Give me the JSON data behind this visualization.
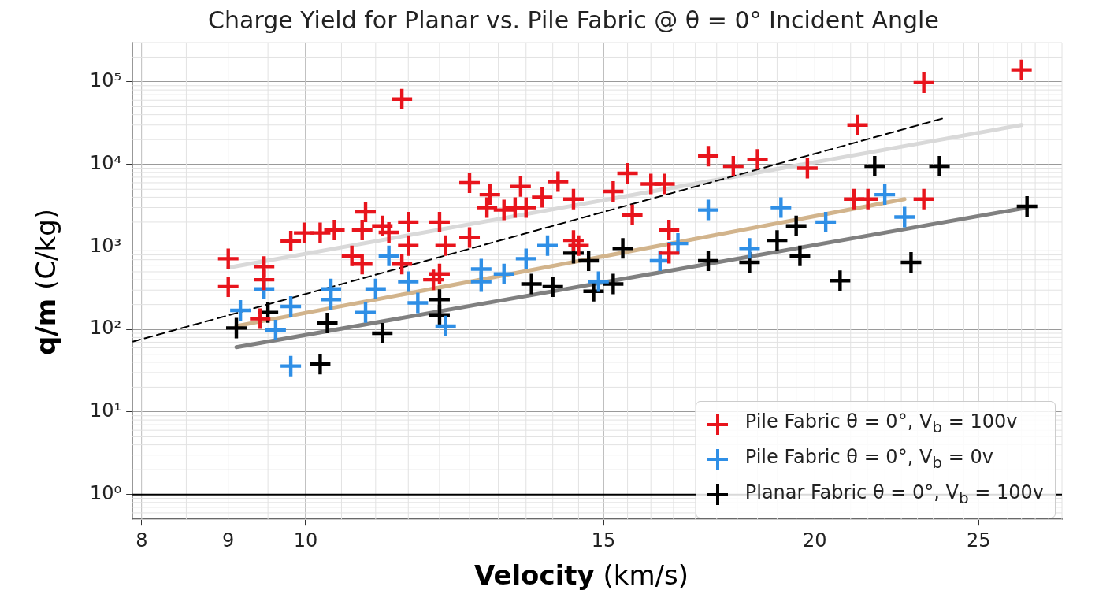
{
  "chart_data": {
    "type": "scatter",
    "title": "Charge Yield for Planar vs. Pile Fabric @ θ = 0° Incident Angle",
    "xlabel": "Velocity (km/s)",
    "ylabel": "q/m (C/kg)",
    "log": "xy",
    "xlim": [
      7.9,
      28
    ],
    "xticks": [
      8,
      9,
      10,
      15,
      20,
      25
    ],
    "ylim": [
      0.5,
      300000
    ],
    "yticks": [
      {
        "value": 1,
        "label": "10⁰"
      },
      {
        "value": 10,
        "label": "10¹"
      },
      {
        "value": 100,
        "label": "10²"
      },
      {
        "value": 1000,
        "label": "10³"
      },
      {
        "value": 10000,
        "label": "10⁴"
      },
      {
        "value": 100000,
        "label": "10⁵"
      }
    ],
    "grid": true,
    "legend": "bottom right",
    "marker": "cross",
    "ref_lines": [
      {
        "axis": "y",
        "value": 1,
        "color": "#000000"
      }
    ],
    "series": [
      {
        "name": "Pile Fabric θ = 0°, V$_{b}$ = 100v",
        "color": "#e8141c",
        "x": [
          9.0,
          9.0,
          9.45,
          9.45,
          9.4,
          9.8,
          9.98,
          10.2,
          10.4,
          10.65,
          10.8,
          10.85,
          10.8,
          11.1,
          11.2,
          11.5,
          11.5,
          11.4,
          11.4,
          11.9,
          12.0,
          12.1,
          12.5,
          12.0,
          12.5,
          12.85,
          12.8,
          13.1,
          13.4,
          13.3,
          13.5,
          13.8,
          14.1,
          14.4,
          14.4,
          14.5,
          15.2,
          15.5,
          15.6,
          16.0,
          16.3,
          16.4,
          16.4,
          17.3,
          17.9,
          18.5,
          19.8,
          21.2,
          21.1,
          21.5,
          23.2,
          23.2,
          26.5
        ],
        "values": [
          720,
          330,
          400,
          580,
          135,
          1180,
          1480,
          1480,
          1600,
          780,
          620,
          2650,
          1600,
          1800,
          1500,
          2000,
          1040,
          62000,
          620,
          400,
          2000,
          1040,
          1300,
          470,
          6000,
          4300,
          3000,
          2800,
          5400,
          3000,
          3000,
          4000,
          6200,
          3800,
          1200,
          1040,
          4700,
          7800,
          2450,
          5800,
          5800,
          1600,
          840,
          12600,
          9500,
          11500,
          9000,
          30000,
          3800,
          3800,
          98000,
          3800,
          140000
        ]
      },
      {
        "name": "Pile Fabric θ = 0°, V$_{b}$ = 0v",
        "color": "#2f8fe6",
        "x": [
          9.15,
          9.45,
          9.6,
          9.8,
          9.8,
          10.35,
          10.35,
          11.0,
          10.85,
          11.2,
          11.5,
          11.65,
          12.1,
          12.7,
          13.1,
          12.7,
          13.5,
          13.9,
          14.9,
          16.2,
          16.6,
          17.3,
          18.3,
          19.1,
          20.3,
          22.0,
          22.6
        ],
        "values": [
          170,
          310,
          98,
          190,
          36,
          310,
          230,
          310,
          160,
          780,
          380,
          210,
          110,
          540,
          470,
          380,
          720,
          1040,
          380,
          680,
          1100,
          2800,
          960,
          3000,
          2000,
          4300,
          2300
        ]
      },
      {
        "name": "Planar Fabric θ = 0°, V$_{b}$ = 100v",
        "color": "#000000",
        "x": [
          9.1,
          9.5,
          10.3,
          10.2,
          11.1,
          12.0,
          12.0,
          14.4,
          14.7,
          13.6,
          14.0,
          14.8,
          15.2,
          15.4,
          17.3,
          18.3,
          19.0,
          19.5,
          19.6,
          20.7,
          21.7,
          22.8,
          23.7,
          26.7
        ],
        "values": [
          104,
          160,
          120,
          38,
          90,
          230,
          150,
          840,
          680,
          355,
          330,
          290,
          355,
          960,
          680,
          650,
          1200,
          1800,
          780,
          390,
          9500,
          650,
          9500,
          3100
        ]
      },
      {
        "type": "line",
        "marker": "none",
        "color": "#000000",
        "line_style": "dashed",
        "x": [
          7.9,
          23.8
        ],
        "values": [
          71,
          36000
        ]
      },
      {
        "type": "line",
        "marker": "none",
        "color": "#d9d9d9",
        "line_style": "solid",
        "x": [
          9.0,
          26.5
        ],
        "values": [
          560,
          30000
        ]
      },
      {
        "type": "line",
        "marker": "none",
        "color": "#d2b48c",
        "line_style": "solid",
        "x": [
          9.1,
          22.6
        ],
        "values": [
          110,
          3800
        ]
      },
      {
        "type": "line",
        "marker": "none",
        "color": "#808080",
        "line_style": "solid",
        "x": [
          9.1,
          26.7
        ],
        "values": [
          61,
          3000
        ]
      }
    ]
  }
}
